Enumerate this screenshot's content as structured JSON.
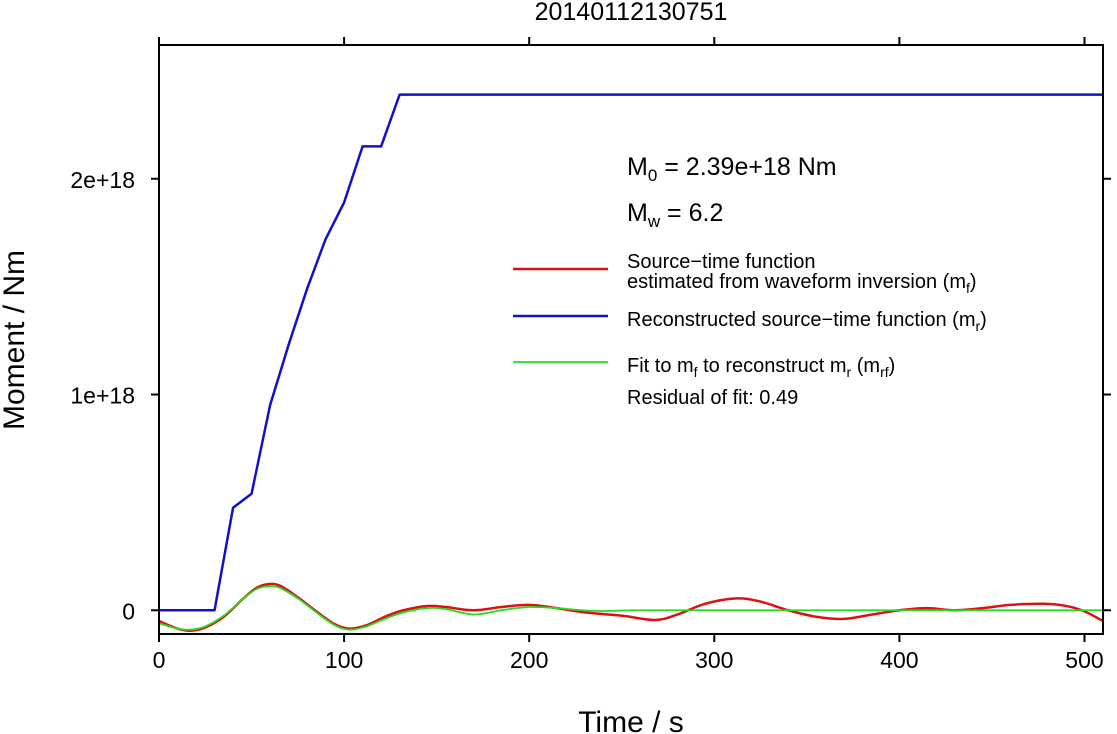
{
  "chart_data": {
    "type": "line",
    "title": "20140112130751",
    "xlabel": "Time / s",
    "ylabel": "Moment / Nm",
    "xlim": [
      0,
      510
    ],
    "ylim": [
      -1.1e+17,
      2.62e+18
    ],
    "xticks": [
      0,
      100,
      200,
      300,
      400,
      500
    ],
    "xtick_labels": [
      "0",
      "100",
      "200",
      "300",
      "400",
      "500"
    ],
    "yticks": [
      0,
      1e+18,
      2e+18
    ],
    "ytick_labels": [
      "0",
      "1e+18",
      "2e+18"
    ],
    "grid": false,
    "legend_position": "right",
    "annotations": {
      "m0": {
        "main": "M",
        "sub": "0",
        "rest": " = 2.39e+18 Nm"
      },
      "mw": {
        "main": "M",
        "sub": "w",
        "rest": " = 6.2"
      },
      "residual": "Residual of fit: 0.49"
    },
    "series": [
      {
        "key": "mf",
        "name": "Source−time function estimated from waveform inversion (mf)",
        "legend_line1": "Source−time function",
        "legend_line2": "estimated from waveform inversion (m",
        "legend_sub": "f",
        "legend_close": ")",
        "color": "#dd1111",
        "x": [
          0,
          10,
          17,
          25,
          35,
          45,
          52,
          58,
          65,
          75,
          85,
          95,
          103,
          112,
          122,
          132,
          145,
          155,
          170,
          185,
          200,
          215,
          230,
          250,
          268,
          280,
          295,
          312,
          325,
          340,
          355,
          370,
          385,
          400,
          415,
          430,
          445,
          460,
          478,
          490,
          500,
          510
        ],
        "y": [
          -5e+16,
          -8.5e+16,
          -9.5e+16,
          -8e+16,
          -3e+16,
          5e+16,
          1e+17,
          1.2e+17,
          1.15e+17,
          6e+16,
          -5000000000000000.0,
          -6.5e+16,
          -8.5e+16,
          -7e+16,
          -3e+16,
          0,
          2e+16,
          1.5e+16,
          0,
          1.5e+16,
          2.5e+16,
          1e+16,
          -1e+16,
          -2.5e+16,
          -4.5e+16,
          -2e+16,
          3e+16,
          5.5e+16,
          4e+16,
          0,
          -3e+16,
          -4e+16,
          -2e+16,
          0,
          1e+16,
          0,
          1e+16,
          2.5e+16,
          3e+16,
          2e+16,
          -5000000000000000.0,
          -5e+16
        ]
      },
      {
        "key": "mr",
        "name": "Reconstructed source−time function (mr)",
        "legend_main": "Reconstructed source−time function (m",
        "legend_sub": "r",
        "legend_close": ")",
        "color": "#1111cc",
        "x": [
          0,
          30,
          40,
          50,
          60,
          70,
          80,
          90,
          100,
          110,
          120,
          130,
          510
        ],
        "y": [
          0,
          0,
          4.75e+17,
          5.4e+17,
          9.5e+17,
          1.23e+18,
          1.49e+18,
          1.72e+18,
          1.89e+18,
          2.15e+18,
          2.15e+18,
          2.39e+18,
          2.39e+18
        ]
      },
      {
        "key": "mrf",
        "name": "Fit to mf to reconstruct mr (mrf)",
        "legend_a": "Fit to m",
        "legend_sub1": "f",
        "legend_b": " to reconstruct m",
        "legend_sub2": "r",
        "legend_c": " (m",
        "legend_sub3": "rf",
        "legend_close": ")",
        "color": "#22dd22",
        "x": [
          0,
          10,
          17,
          25,
          35,
          45,
          52,
          58,
          65,
          75,
          85,
          95,
          103,
          112,
          122,
          132,
          145,
          155,
          170,
          185,
          200,
          215,
          235,
          260,
          300,
          350,
          400,
          450,
          510
        ],
        "y": [
          -6e+16,
          -8.5e+16,
          -9e+16,
          -7.5e+16,
          -2.5e+16,
          5e+16,
          9.5e+16,
          1.1e+17,
          1.05e+17,
          5.5e+16,
          -1e+16,
          -7e+16,
          -9e+16,
          -7.5e+16,
          -4e+16,
          -1e+16,
          1e+16,
          5000000000000000.0,
          -2e+16,
          0,
          1.5e+16,
          1e+16,
          -3000000000000000.0,
          0,
          0,
          0,
          0,
          0,
          0
        ]
      }
    ]
  }
}
